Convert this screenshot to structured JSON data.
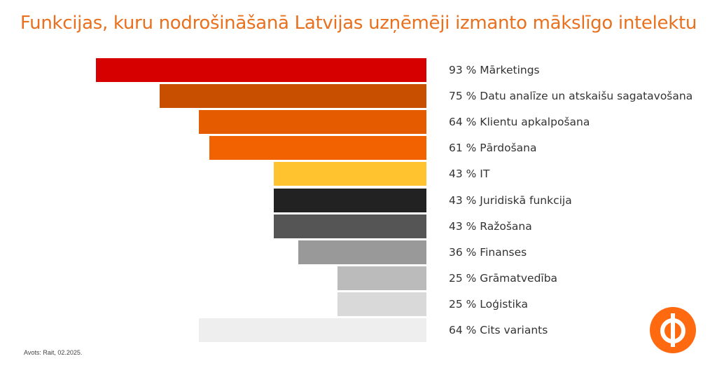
{
  "title": "Funkcijas, kuru nodrošināšanā Latvijas uzņēmēji izmanto mākslīgo intelektu",
  "source": "Avots: Rait, 02.2025.",
  "colors": {
    "title": "#e8701e",
    "logo": "#ff6a10"
  },
  "chart_data": {
    "type": "bar",
    "orientation": "horizontal",
    "title": "Funkcijas, kuru nodrošināšanā Latvijas uzņēmēji izmanto mākslīgo intelektu",
    "unit": "%",
    "xlabel": "",
    "ylabel": "",
    "xlim": [
      0,
      100
    ],
    "grid": false,
    "categories": [
      "Mārketings",
      "Datu analīze un atskaišu sagatavošana",
      "Klientu apkalpošana",
      "Pārdošana",
      "IT",
      "Juridiskā funkcija",
      "Ražošana",
      "Finanses",
      "Grāmatvedība",
      "Loģistika",
      "Cits variants"
    ],
    "values": [
      93,
      75,
      64,
      61,
      43,
      43,
      43,
      36,
      25,
      25,
      64
    ],
    "labels": [
      "93 % Mārketings",
      "75 % Datu analīze un atskaišu sagatavošana",
      "64 % Klientu apkalpošana",
      "61 % Pārdošana",
      "43 % IT",
      "43 % Juridiskā funkcija",
      "43 % Ražošana",
      "36 % Finanses",
      "25 % Grāmatvedība",
      "25 % Loģistika",
      "64 % Cits variants"
    ],
    "colors": [
      "#d60000",
      "#c84f00",
      "#e55c00",
      "#f26200",
      "#ffc330",
      "#222222",
      "#555555",
      "#999999",
      "#bbbbbb",
      "#d9d9d9",
      "#eeeeee"
    ]
  }
}
